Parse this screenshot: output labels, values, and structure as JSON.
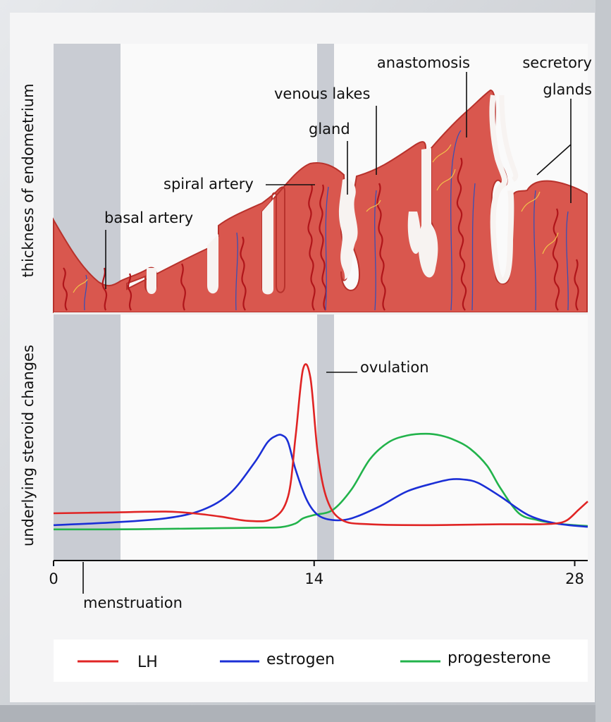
{
  "labels": {
    "y_top": "thickness of endometrium",
    "y_bottom": "underlying steroid changes",
    "secretory_glands_line1": "secretory",
    "secretory_glands_line2": "glands",
    "anastomosis": "anastomosis",
    "venous_lakes": "venous lakes",
    "gland": "gland",
    "spiral_artery": "spiral artery",
    "basal_artery": "basal artery",
    "ovulation": "ovulation",
    "menstruation": "menstruation"
  },
  "colors": {
    "endometrium": "#d9574e",
    "endometrium_edge": "#b8322c",
    "artery": "#b0151a",
    "vein": "#3a4fb4",
    "gland_yellow": "#f2c24a",
    "shade": "#c9ccd3",
    "LH": "#e02424",
    "estrogen": "#1b2fd6",
    "progesterone": "#22b34b"
  },
  "chart_data": {
    "type": "line",
    "x_ticks": [
      "0",
      "14",
      "28"
    ],
    "xlim": [
      0,
      28.7
    ],
    "ylim": [
      0,
      1
    ],
    "series": [
      {
        "name": "LH",
        "x": [
          0,
          3,
          6,
          7.5,
          9,
          10.5,
          11.8,
          12.6,
          13.0,
          13.4,
          13.8,
          14.2,
          14.7,
          15.5,
          17,
          20,
          24,
          26,
          27,
          27.6,
          28.2,
          28.7
        ],
        "values": [
          0.1,
          0.105,
          0.11,
          0.1,
          0.08,
          0.055,
          0.07,
          0.2,
          0.55,
          0.95,
          0.9,
          0.45,
          0.18,
          0.06,
          0.035,
          0.03,
          0.035,
          0.035,
          0.04,
          0.06,
          0.12,
          0.17
        ]
      },
      {
        "name": "estrogen",
        "x": [
          0,
          3,
          6,
          8,
          9.5,
          10.8,
          11.5,
          12.0,
          12.3,
          12.6,
          13.0,
          13.6,
          14.2,
          15.0,
          16.0,
          17.5,
          19.0,
          20.5,
          21.3,
          22.0,
          22.8,
          24.0,
          25.5,
          27.0,
          28.7
        ],
        "values": [
          0.03,
          0.045,
          0.07,
          0.12,
          0.22,
          0.4,
          0.52,
          0.56,
          0.56,
          0.52,
          0.36,
          0.18,
          0.09,
          0.06,
          0.07,
          0.14,
          0.23,
          0.28,
          0.3,
          0.3,
          0.28,
          0.2,
          0.09,
          0.04,
          0.02
        ]
      },
      {
        "name": "progesterone",
        "x": [
          0,
          3,
          6,
          9,
          11,
          12.2,
          13.0,
          13.4,
          14.0,
          15.0,
          16.0,
          17.0,
          18.0,
          19.0,
          20.0,
          20.8,
          21.6,
          22.4,
          23.3,
          24.0,
          25.0,
          26.0,
          27.0,
          28.0,
          28.7
        ],
        "values": [
          0.005,
          0.005,
          0.008,
          0.012,
          0.015,
          0.018,
          0.04,
          0.07,
          0.09,
          0.12,
          0.24,
          0.42,
          0.52,
          0.56,
          0.57,
          0.56,
          0.53,
          0.48,
          0.38,
          0.25,
          0.1,
          0.06,
          0.04,
          0.03,
          0.025
        ]
      }
    ]
  }
}
